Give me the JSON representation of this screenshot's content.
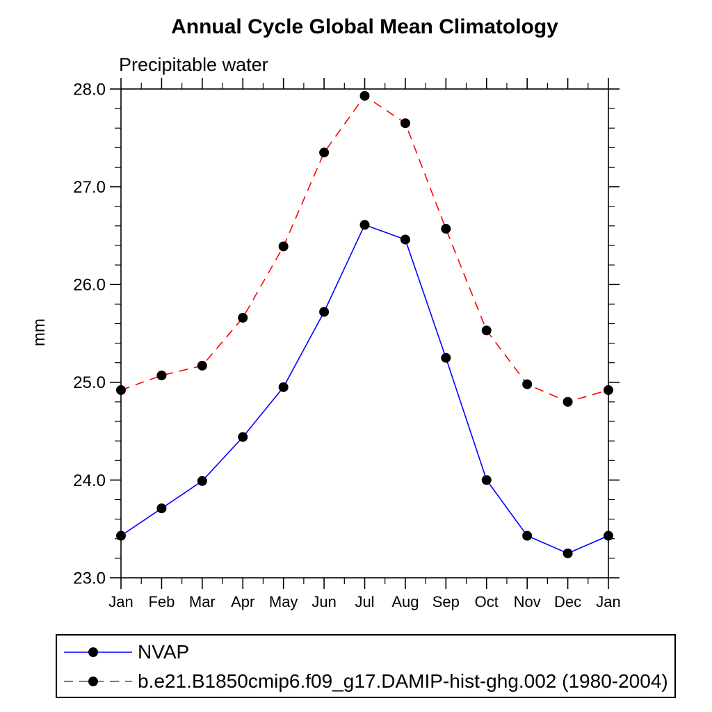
{
  "chart_data": {
    "type": "line",
    "title": "Annual Cycle Global Mean Climatology",
    "subtitle": "Precipitable water",
    "ylabel": "mm",
    "categories": [
      "Jan",
      "Feb",
      "Mar",
      "Apr",
      "May",
      "Jun",
      "Jul",
      "Aug",
      "Sep",
      "Oct",
      "Nov",
      "Dec",
      "Jan"
    ],
    "series": [
      {
        "name": "NVAP",
        "color": "#0000ff",
        "style": "solid",
        "marker": "filled-circle",
        "marker_color": "#000000",
        "values": [
          23.43,
          23.71,
          23.99,
          24.44,
          24.95,
          25.72,
          26.61,
          26.46,
          25.25,
          24.0,
          23.43,
          23.25,
          23.43
        ]
      },
      {
        "name": "b.e21.B1850cmip6.f09_g17.DAMIP-hist-ghg.002 (1980-2004)",
        "color": "#ff0000",
        "style": "dashed",
        "marker": "filled-circle",
        "marker_color": "#000000",
        "values": [
          24.92,
          25.07,
          25.17,
          25.66,
          26.39,
          27.35,
          27.93,
          27.65,
          26.57,
          25.53,
          24.98,
          24.8,
          24.92
        ]
      }
    ],
    "ylim": [
      23.0,
      28.0
    ],
    "y_major_ticks": [
      "23.0",
      "24.0",
      "25.0",
      "26.0",
      "27.0",
      "28.0"
    ],
    "y_minor_step": 0.2,
    "x_minor_at_half_month": true,
    "grid": false,
    "legend_position": "bottom",
    "axis_color": "#000000",
    "background_color": "#ffffff"
  }
}
